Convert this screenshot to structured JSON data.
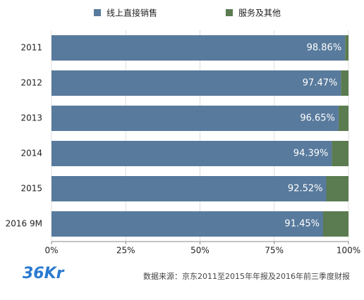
{
  "chart_data": {
    "type": "stacked-barh",
    "categories": [
      "2011",
      "2012",
      "2013",
      "2014",
      "2015",
      "2016 9M"
    ],
    "series": [
      {
        "name": "线上直接销售",
        "color": "#587a9c",
        "values": [
          98.86,
          97.47,
          96.65,
          94.39,
          92.52,
          91.45
        ],
        "value_labels": [
          "98.86%",
          "97.47%",
          "96.65%",
          "94.39%",
          "92.52%",
          "91.45%"
        ]
      },
      {
        "name": "服务及其他",
        "color": "#5b7b50",
        "values": [
          1.14,
          2.53,
          3.35,
          5.61,
          7.48,
          8.55
        ]
      }
    ],
    "xlim": [
      0,
      100
    ],
    "xticks": [
      {
        "value": 0,
        "label": "0%"
      },
      {
        "value": 25,
        "label": "25%"
      },
      {
        "value": 50,
        "label": "50%"
      },
      {
        "value": 75,
        "label": "75%"
      },
      {
        "value": 100,
        "label": "100%"
      }
    ],
    "grid": true,
    "legend": "top",
    "logo": "36Kr",
    "source": "数据来源：京东2011至2015年年报及2016年前三季度财报"
  }
}
